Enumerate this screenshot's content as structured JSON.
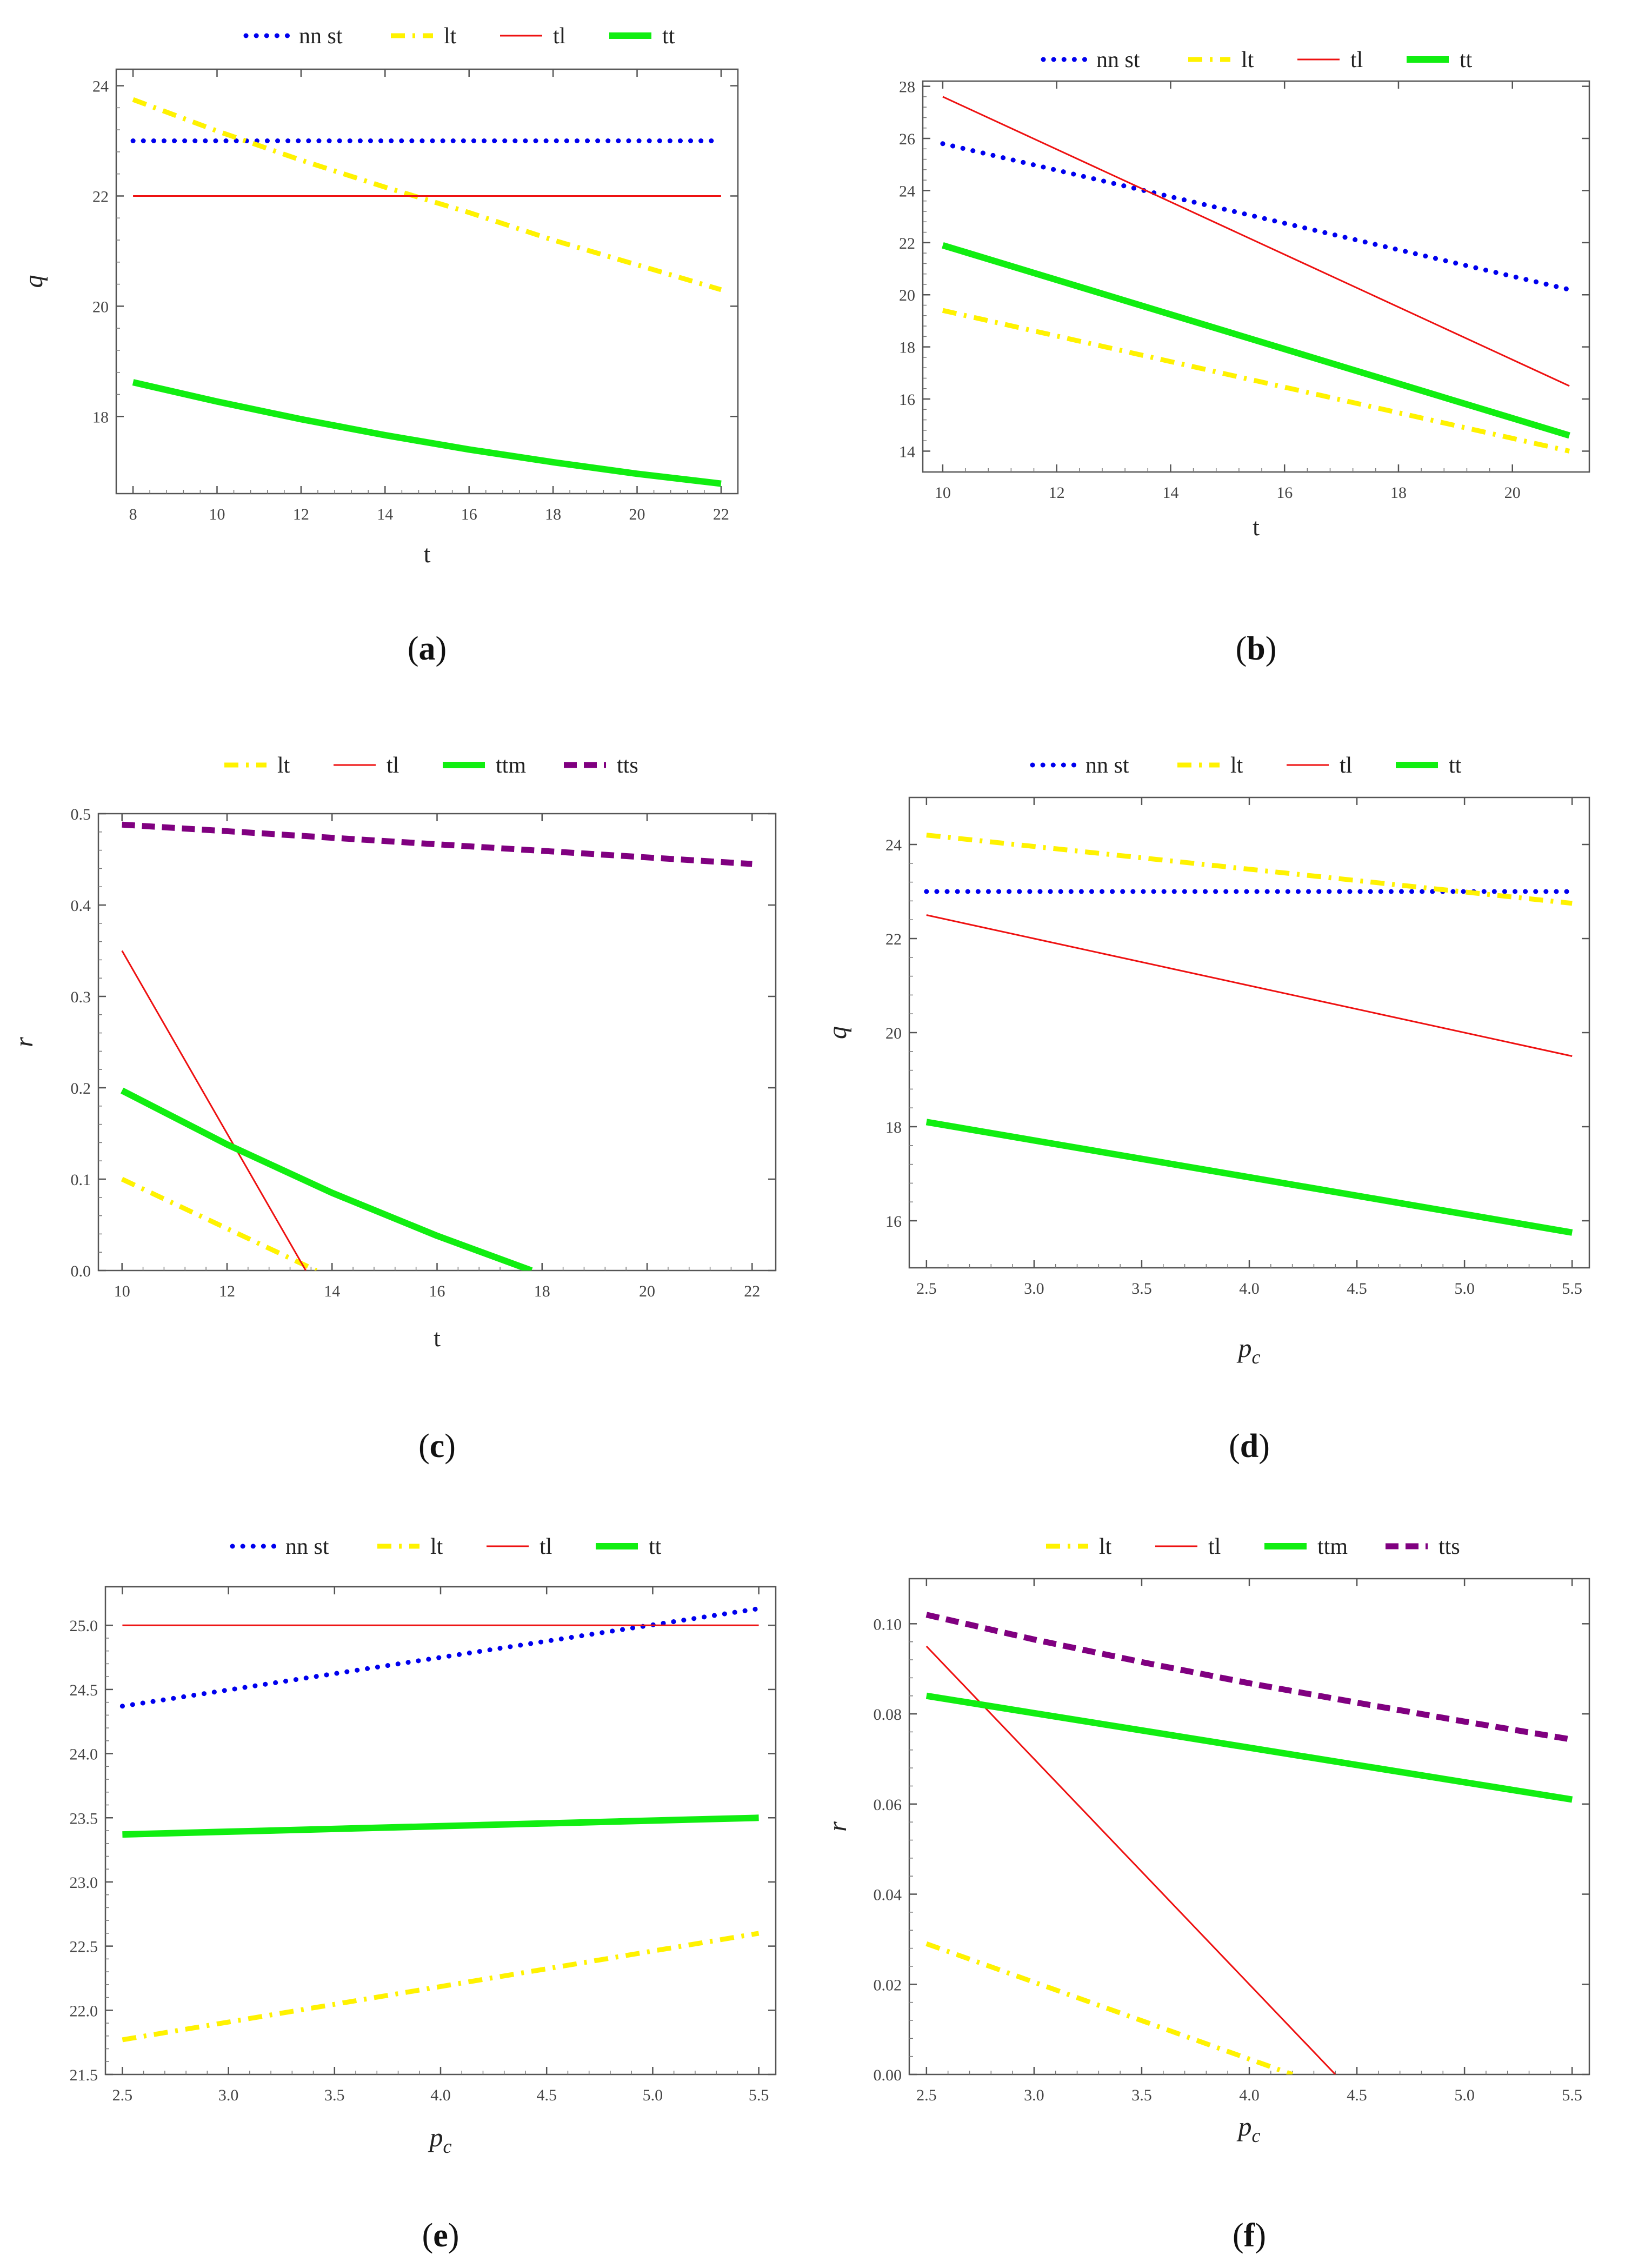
{
  "figure": {
    "styles": {
      "nn st": {
        "color": "#0000EE",
        "dash": "dotted",
        "width": 9
      },
      "lt": {
        "color": "#FFF200",
        "dash": "dashdot",
        "width": 9
      },
      "tl": {
        "color": "#EE1111",
        "dash": "solid",
        "width": 3
      },
      "tt": {
        "color": "#11EE11",
        "dash": "solid",
        "width": 12
      },
      "ttm": {
        "color": "#11EE11",
        "dash": "solid",
        "width": 12
      },
      "tts": {
        "color": "#800080",
        "dash": "dashed",
        "width": 11
      }
    }
  },
  "chart_data": [
    {
      "panel": "a",
      "caption": "(a)",
      "type": "line",
      "legend": [
        "nn st",
        "lt",
        "tl",
        "tt"
      ],
      "xlabel": "t",
      "ylabel": "q",
      "xlim": [
        7.6,
        22.4
      ],
      "ylim": [
        16.6,
        24.3
      ],
      "xticks": [
        8,
        10,
        12,
        14,
        16,
        18,
        20,
        22
      ],
      "yticks": [
        18,
        20,
        22,
        24
      ],
      "series": [
        {
          "name": "nn st",
          "x": [
            8,
            22
          ],
          "y": [
            23,
            23
          ]
        },
        {
          "name": "lt",
          "x": [
            8,
            10,
            12,
            14,
            16,
            18,
            20,
            22
          ],
          "y": [
            23.75,
            23.18,
            22.65,
            22.16,
            21.7,
            21.2,
            20.75,
            20.3
          ]
        },
        {
          "name": "tl",
          "x": [
            8,
            22
          ],
          "y": [
            22,
            22
          ]
        },
        {
          "name": "tt",
          "x": [
            8,
            10,
            12,
            14,
            16,
            18,
            20,
            22
          ],
          "y": [
            18.62,
            18.27,
            17.95,
            17.66,
            17.4,
            17.17,
            16.96,
            16.78
          ]
        }
      ]
    },
    {
      "panel": "b",
      "caption": "(b)",
      "type": "line",
      "legend": [
        "nn st",
        "lt",
        "tl",
        "tt"
      ],
      "xlabel": "t",
      "ylabel": "",
      "xlim": [
        9.65,
        21.35
      ],
      "ylim": [
        13.2,
        28.2
      ],
      "xticks": [
        10,
        12,
        14,
        16,
        18,
        20
      ],
      "yticks": [
        14,
        16,
        18,
        20,
        22,
        24,
        26,
        28
      ],
      "series": [
        {
          "name": "nn st",
          "x": [
            10,
            21
          ],
          "y": [
            25.8,
            20.2
          ]
        },
        {
          "name": "lt",
          "x": [
            10,
            21
          ],
          "y": [
            19.4,
            14.0
          ]
        },
        {
          "name": "tl",
          "x": [
            10,
            21
          ],
          "y": [
            27.6,
            16.5
          ]
        },
        {
          "name": "tt",
          "x": [
            10,
            21
          ],
          "y": [
            21.9,
            14.6
          ]
        }
      ]
    },
    {
      "panel": "c",
      "caption": "(c)",
      "type": "line",
      "legend": [
        "lt",
        "tl",
        "ttm",
        "tts"
      ],
      "xlabel": "t",
      "ylabel": "r",
      "xlim": [
        9.55,
        22.45
      ],
      "ylim": [
        0,
        0.5
      ],
      "xticks": [
        10,
        12,
        14,
        16,
        18,
        20,
        22
      ],
      "yticks": [
        0.0,
        0.1,
        0.2,
        0.3,
        0.4,
        0.5
      ],
      "ytick_labels": [
        "0.0",
        "0.1",
        "0.2",
        "0.3",
        "0.4",
        "0.5"
      ],
      "series": [
        {
          "name": "lt",
          "x": [
            10,
            13.7
          ],
          "y": [
            0.1,
            0
          ]
        },
        {
          "name": "tl",
          "x": [
            10,
            13.5
          ],
          "y": [
            0.35,
            0
          ]
        },
        {
          "name": "ttm",
          "x": [
            10,
            12,
            14,
            16,
            17.8
          ],
          "y": [
            0.197,
            0.138,
            0.085,
            0.038,
            0
          ]
        },
        {
          "name": "tts",
          "x": [
            10,
            22
          ],
          "y": [
            0.488,
            0.445
          ]
        }
      ]
    },
    {
      "panel": "d",
      "caption": "(d)",
      "type": "line",
      "legend": [
        "nn st",
        "lt",
        "tl",
        "tt"
      ],
      "xlabel": "p_c",
      "ylabel": "q",
      "xlim": [
        2.42,
        5.58
      ],
      "ylim": [
        15,
        25
      ],
      "xticks": [
        2.5,
        3.0,
        3.5,
        4.0,
        4.5,
        5.0,
        5.5
      ],
      "xtick_labels": [
        "2.5",
        "3.0",
        "3.5",
        "4.0",
        "4.5",
        "5.0",
        "5.5"
      ],
      "yticks": [
        16,
        18,
        20,
        22,
        24
      ],
      "series": [
        {
          "name": "nn st",
          "x": [
            2.5,
            5.5
          ],
          "y": [
            23,
            23
          ]
        },
        {
          "name": "lt",
          "x": [
            2.5,
            5.5
          ],
          "y": [
            24.2,
            22.75
          ]
        },
        {
          "name": "tl",
          "x": [
            2.5,
            5.5
          ],
          "y": [
            22.5,
            19.5
          ]
        },
        {
          "name": "tt",
          "x": [
            2.5,
            5.5
          ],
          "y": [
            18.1,
            15.75
          ]
        }
      ]
    },
    {
      "panel": "e",
      "caption": "(e)",
      "type": "line",
      "legend": [
        "nn st",
        "lt",
        "tl",
        "tt"
      ],
      "xlabel": "p_c",
      "ylabel": "",
      "xlim": [
        2.42,
        5.58
      ],
      "ylim": [
        21.5,
        25.3
      ],
      "xticks": [
        2.5,
        3.0,
        3.5,
        4.0,
        4.5,
        5.0,
        5.5
      ],
      "xtick_labels": [
        "2.5",
        "3.0",
        "3.5",
        "4.0",
        "4.5",
        "5.0",
        "5.5"
      ],
      "yticks": [
        21.5,
        22.0,
        22.5,
        23.0,
        23.5,
        24.0,
        24.5,
        25.0
      ],
      "ytick_labels": [
        "21.5",
        "22.0",
        "22.5",
        "23.0",
        "23.5",
        "24.0",
        "24.5",
        "25.0"
      ],
      "series": [
        {
          "name": "nn st",
          "x": [
            2.5,
            5.5
          ],
          "y": [
            24.37,
            25.13
          ]
        },
        {
          "name": "lt",
          "x": [
            2.5,
            5.5
          ],
          "y": [
            21.77,
            22.6
          ]
        },
        {
          "name": "tl",
          "x": [
            2.5,
            5.5
          ],
          "y": [
            25.0,
            25.0
          ]
        },
        {
          "name": "tt",
          "x": [
            2.5,
            5.5
          ],
          "y": [
            23.37,
            23.5
          ]
        }
      ]
    },
    {
      "panel": "f",
      "caption": "(f)",
      "type": "line",
      "legend": [
        "lt",
        "tl",
        "ttm",
        "tts"
      ],
      "xlabel": "p_c",
      "ylabel": "r",
      "xlim": [
        2.42,
        5.58
      ],
      "ylim": [
        0,
        0.11
      ],
      "xticks": [
        2.5,
        3.0,
        3.5,
        4.0,
        4.5,
        5.0,
        5.5
      ],
      "xtick_labels": [
        "2.5",
        "3.0",
        "3.5",
        "4.0",
        "4.5",
        "5.0",
        "5.5"
      ],
      "yticks": [
        0.0,
        0.02,
        0.04,
        0.06,
        0.08,
        0.1
      ],
      "ytick_labels": [
        "0.00",
        "0.02",
        "0.04",
        "0.06",
        "0.08",
        "0.10"
      ],
      "series": [
        {
          "name": "lt",
          "x": [
            2.5,
            4.2
          ],
          "y": [
            0.029,
            0
          ]
        },
        {
          "name": "tl",
          "x": [
            2.5,
            4.4
          ],
          "y": [
            0.095,
            0
          ]
        },
        {
          "name": "ttm",
          "x": [
            2.5,
            5.5
          ],
          "y": [
            0.084,
            0.061
          ]
        },
        {
          "name": "tts",
          "x": [
            2.5,
            3.0,
            3.5,
            4.0,
            4.5,
            5.0,
            5.5
          ],
          "y": [
            0.102,
            0.0965,
            0.0915,
            0.0868,
            0.0825,
            0.0783,
            0.0743
          ]
        }
      ]
    }
  ]
}
